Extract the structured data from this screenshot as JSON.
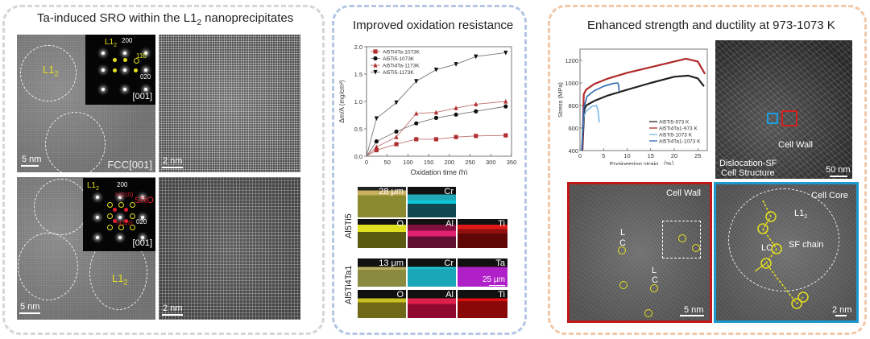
{
  "panels": {
    "left": {
      "title": "Ta-induced SRO within the L1",
      "title_sub": "2",
      "title_tail": " nanoprecipitates",
      "top_image": {
        "label_l12": "L1",
        "label_l12_sub": "2",
        "scale": "5 nm",
        "zone": "FCC[001]"
      },
      "top_fft": {
        "label_l12": "L1",
        "label_l12_sub": "2",
        "idx_200": "200",
        "idx_110": "110",
        "idx_020": "020",
        "zone": "[001]"
      },
      "top_hr": {
        "scale": "2 nm"
      },
      "bottom_image": {
        "label_l12": "L1",
        "label_l12_sub": "2",
        "scale": "5 nm"
      },
      "bottom_fft": {
        "label_l12": "L1",
        "label_l12_sub": "2",
        "idx_200": "200",
        "idx_020": "020",
        "sro": "SRO",
        "idx_210": "½(210)",
        "idx_110": "½(110)",
        "zone": "[001]"
      },
      "bottom_hr": {
        "scale": "2 nm"
      }
    },
    "middle": {
      "title": "Improved oxidation resistance",
      "eds": {
        "sample1": "Al5Ti5",
        "sample1_thickness": "28 μm",
        "sample1_maps": [
          "Cr",
          "O",
          "Al",
          "Ti"
        ],
        "sample2": "Al5Ti4Ta1",
        "sample2_thickness": "13 μm",
        "sample2_maps": [
          "Cr",
          "Ta",
          "O",
          "Al",
          "Ti"
        ],
        "scale": "25 μm"
      }
    },
    "right": {
      "title": "Enhanced strength and ductility at 973-1073 K",
      "sem": {
        "caption_line1": "Dislocation-SF",
        "caption_line2": "Cell Structure",
        "arrow_label": "Cell Wall",
        "scale": "50 nm"
      },
      "hr_wall": {
        "title": "Cell Wall",
        "label_L1": "L",
        "label_C1": "C",
        "label_L2": "L",
        "label_C2": "C",
        "scale": "5 nm"
      },
      "hr_core": {
        "title": "Cell Core",
        "label_l12": "L1",
        "label_l12_sub": "2",
        "label_lc": "LC",
        "label_sf": "SF chain",
        "scale": "2 nm"
      }
    }
  },
  "chart_data": [
    {
      "type": "line",
      "title": "",
      "xlabel": "Oxidation time (h)",
      "ylabel": "Δm/A (mg/cm²)",
      "xlim": [
        0,
        350
      ],
      "ylim": [
        0,
        2.0
      ],
      "xticks": [
        0,
        50,
        100,
        150,
        200,
        250,
        300,
        350
      ],
      "yticks": [
        0.0,
        0.5,
        1.0,
        1.5,
        2.0
      ],
      "legend_position": "top-left",
      "x": [
        0,
        24,
        72,
        120,
        168,
        216,
        264,
        336
      ],
      "series": [
        {
          "name": "Al5Ti4Ta-1073K",
          "marker": "square",
          "color": "#b03030",
          "values": [
            0,
            0.11,
            0.22,
            0.31,
            0.31,
            0.35,
            0.37,
            0.38
          ]
        },
        {
          "name": "Al5Ti5-1073K",
          "marker": "circle",
          "color": "#111111",
          "values": [
            0,
            0.27,
            0.45,
            0.6,
            0.7,
            0.76,
            0.82,
            0.91
          ]
        },
        {
          "name": "Al5Ti4Ta-1173K",
          "marker": "triangle-up",
          "color": "#b03030",
          "values": [
            0,
            0.17,
            0.35,
            0.78,
            0.8,
            0.88,
            0.95,
            1.0
          ]
        },
        {
          "name": "Al5Ti5-1173K",
          "marker": "triangle-down",
          "color": "#111111",
          "values": [
            0,
            0.69,
            0.98,
            1.37,
            1.58,
            1.68,
            1.82,
            1.89
          ]
        }
      ]
    },
    {
      "type": "line",
      "title": "",
      "xlabel": "Engineering strain （%）",
      "ylabel": "Stress (MPa)",
      "xlim": [
        0,
        27
      ],
      "ylim": [
        400,
        1300
      ],
      "xticks": [
        0,
        5,
        10,
        15,
        20,
        25
      ],
      "yticks": [
        400,
        600,
        800,
        1000,
        1200
      ],
      "legend_position": "bottom-right",
      "series": [
        {
          "name": "Al5Ti5-973 K",
          "color": "#222222",
          "points": [
            [
              0.5,
              400
            ],
            [
              0.9,
              760
            ],
            [
              1.3,
              800
            ],
            [
              3,
              840
            ],
            [
              6,
              890
            ],
            [
              10,
              940
            ],
            [
              15,
              1000
            ],
            [
              20,
              1055
            ],
            [
              23,
              1065
            ],
            [
              25,
              1040
            ],
            [
              26.3,
              970
            ]
          ]
        },
        {
          "name": "Al5Ti4Ta1-973 K",
          "color": "#b02828",
          "points": [
            [
              0.5,
              400
            ],
            [
              0.8,
              900
            ],
            [
              1.3,
              940
            ],
            [
              3,
              990
            ],
            [
              6,
              1040
            ],
            [
              10,
              1090
            ],
            [
              15,
              1140
            ],
            [
              20,
              1190
            ],
            [
              22.5,
              1215
            ],
            [
              25,
              1190
            ],
            [
              26.5,
              1080
            ]
          ]
        },
        {
          "name": "Al5Ti5-1073 K",
          "color": "#7ab8e8",
          "points": [
            [
              0.3,
              400
            ],
            [
              0.8,
              700
            ],
            [
              1.3,
              750
            ],
            [
              2.5,
              790
            ],
            [
              3.5,
              800
            ],
            [
              3.8,
              760
            ],
            [
              4.1,
              650
            ]
          ]
        },
        {
          "name": "Al5Ti4Ta1-1073 K",
          "color": "#2a68b0",
          "points": [
            [
              0.4,
              400
            ],
            [
              0.8,
              780
            ],
            [
              1.5,
              880
            ],
            [
              3,
              930
            ],
            [
              5,
              970
            ],
            [
              7,
              995
            ],
            [
              8,
              1000
            ],
            [
              8.2,
              980
            ],
            [
              8.3,
              930
            ]
          ]
        }
      ]
    }
  ]
}
